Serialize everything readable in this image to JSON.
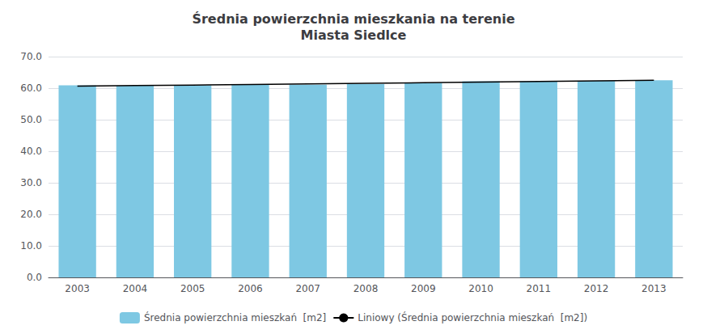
{
  "chart_data": {
    "type": "bar",
    "title": "Średnia powierzchnia mieszkania na terenie\nMiasta Siedlce",
    "categories": [
      "2003",
      "2004",
      "2005",
      "2006",
      "2007",
      "2008",
      "2009",
      "2010",
      "2011",
      "2012",
      "2013"
    ],
    "series": [
      {
        "name": "Średnia powierzchnia mieszkań  [m2]",
        "type": "bar",
        "color": "#7ec8e3",
        "values": [
          60.9,
          60.8,
          60.9,
          61.2,
          61.1,
          61.3,
          61.6,
          62.2,
          62.2,
          62.3,
          62.5
        ]
      },
      {
        "name": "Liniowy (Średnia powierzchnia mieszkań  [m2])",
        "type": "line",
        "color": "#000000",
        "values": [
          60.6182,
          60.8036,
          60.9891,
          61.1745,
          61.36,
          61.5455,
          61.7309,
          61.9164,
          62.1018,
          62.2873,
          62.4727
        ]
      }
    ],
    "ylim": [
      0,
      70
    ],
    "yticks": [
      {
        "value": 0,
        "label": "0.0"
      },
      {
        "value": 10,
        "label": "10.0"
      },
      {
        "value": 20,
        "label": "20.0"
      },
      {
        "value": 30,
        "label": "30.0"
      },
      {
        "value": 40,
        "label": "40.0"
      },
      {
        "value": 50,
        "label": "50.0"
      },
      {
        "value": 60,
        "label": "60.0"
      },
      {
        "value": 70,
        "label": "70.0"
      }
    ],
    "grid": true,
    "legend": "bottom"
  }
}
